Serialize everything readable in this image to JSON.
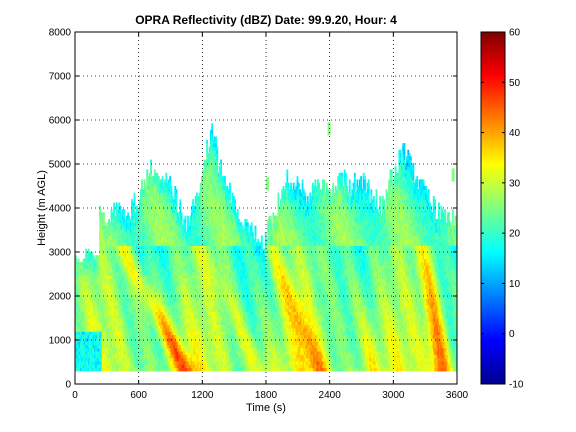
{
  "chart_data": {
    "type": "heatmap",
    "title": "OPRA Reflectivity (dBZ)  Date: 99.9.20, Hour: 4",
    "xlabel": "Time (s)",
    "ylabel": "Height (m AGL)",
    "xlim": [
      0,
      3600
    ],
    "ylim": [
      0,
      8000
    ],
    "xticks": [
      "0",
      "600",
      "1200",
      "1800",
      "2400",
      "3000",
      "3600"
    ],
    "yticks": [
      "0",
      "1000",
      "2000",
      "3000",
      "4000",
      "5000",
      "6000",
      "7000",
      "8000"
    ],
    "grid": true,
    "colorbar": {
      "colormap": "jet",
      "range": [
        -10,
        60
      ],
      "ticks": [
        "-10",
        "0",
        "10",
        "20",
        "30",
        "40",
        "50",
        "60"
      ]
    },
    "echo_base_m": 300,
    "layer_top_m": 3150,
    "echo_top_profile": {
      "time_s": [
        0,
        100,
        200,
        300,
        400,
        500,
        600,
        700,
        750,
        850,
        950,
        1050,
        1150,
        1250,
        1300,
        1350,
        1450,
        1550,
        1650,
        1750,
        1800,
        1900,
        2000,
        2100,
        2200,
        2300,
        2400,
        2500,
        2600,
        2700,
        2800,
        2900,
        3000,
        3100,
        3200,
        3300,
        3400,
        3500,
        3600
      ],
      "height_m": [
        2900,
        3000,
        3900,
        3800,
        4000,
        3900,
        4200,
        4800,
        5000,
        4600,
        4200,
        3600,
        4300,
        5400,
        5700,
        5000,
        4400,
        3800,
        3500,
        3100,
        3400,
        4000,
        4600,
        4400,
        4300,
        4600,
        4300,
        4800,
        4400,
        4700,
        4200,
        4000,
        4800,
        5300,
        4700,
        4400,
        3900,
        3800,
        3700
      ]
    },
    "high_reflectivity_streaks": [
      {
        "t_top_s": 450,
        "t_bottom_s": 1050,
        "peak_dbz": 42
      },
      {
        "t_top_s": 1200,
        "t_bottom_s": 1750,
        "peak_dbz": 32
      },
      {
        "t_top_s": 1850,
        "t_bottom_s": 2300,
        "peak_dbz": 38
      },
      {
        "t_top_s": 2500,
        "t_bottom_s": 2800,
        "peak_dbz": 30
      },
      {
        "t_top_s": 3300,
        "t_bottom_s": 3450,
        "peak_dbz": 44
      }
    ]
  }
}
